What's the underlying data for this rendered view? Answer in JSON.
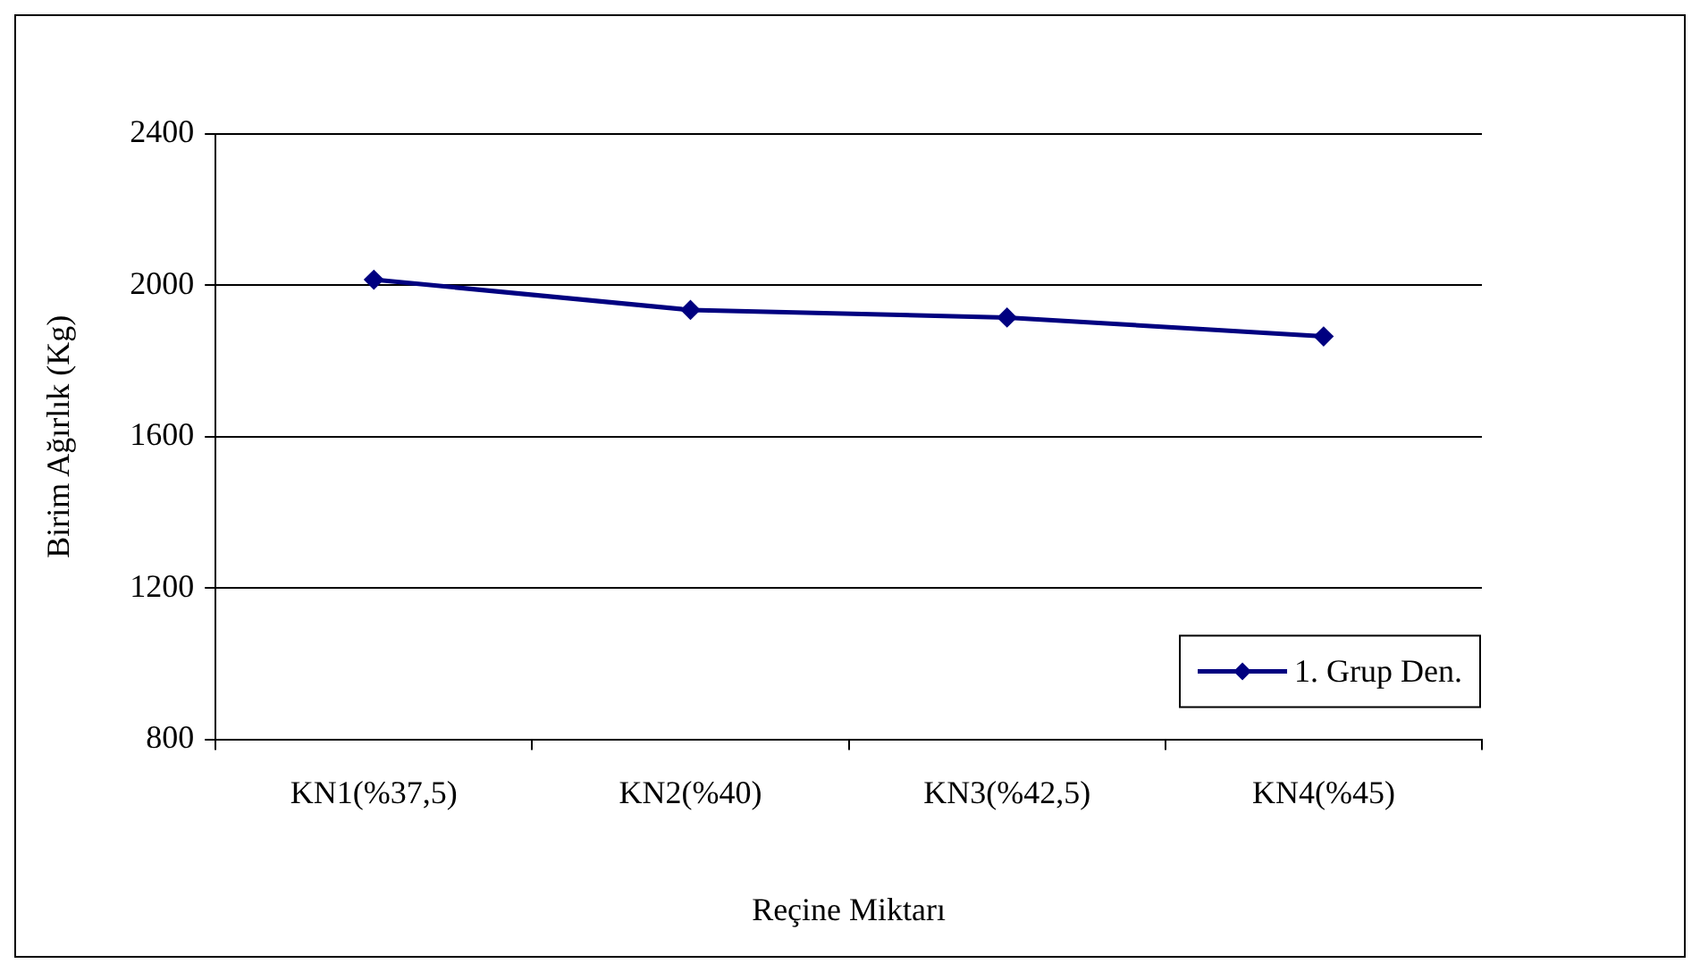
{
  "chart_data": {
    "type": "line",
    "xlabel": "Reçine Miktarı",
    "ylabel": "Birim Ağırlık (Kg)",
    "categories": [
      "KN1(%37,5)",
      "KN2(%40)",
      "KN3(%42,5)",
      "KN4(%45)"
    ],
    "series": [
      {
        "name": "1. Grup Den.",
        "color": "#000080",
        "values": [
          2015,
          1935,
          1915,
          1865
        ]
      }
    ],
    "ylim": [
      800,
      2400
    ],
    "yticks": [
      800,
      1200,
      1600,
      2000,
      2400
    ],
    "grid": "y",
    "legend": "bottom right",
    "marker": "diamond",
    "line_style": "solid"
  }
}
